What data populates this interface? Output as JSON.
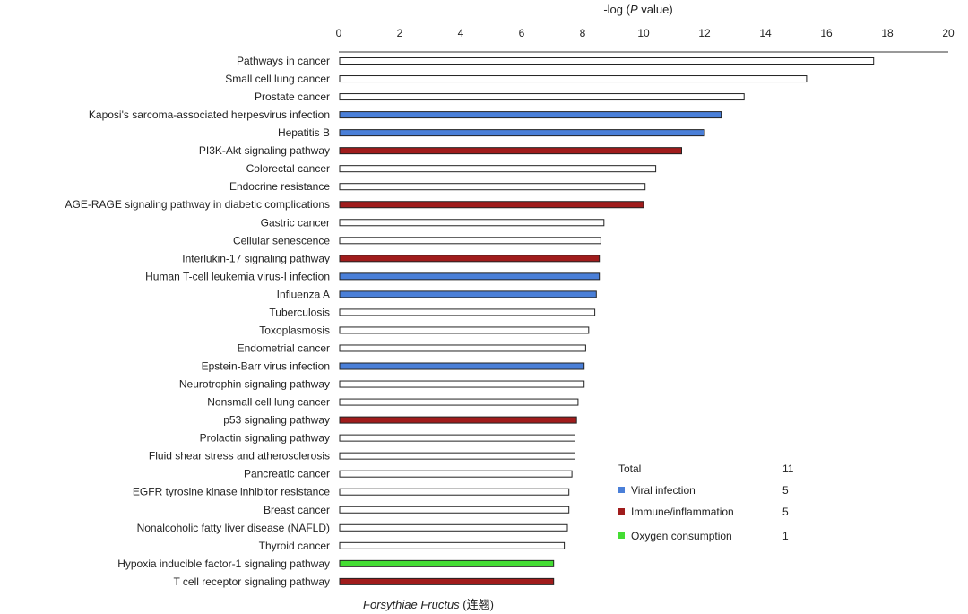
{
  "chart_data": {
    "type": "bar",
    "orientation": "horizontal",
    "xlabel_prefix": "-log (",
    "xlabel_italic": "P",
    "xlabel_suffix": " value)",
    "xlim": [
      0,
      20
    ],
    "xticks": [
      "0",
      "2",
      "4",
      "6",
      "8",
      "10",
      "12",
      "14",
      "16",
      "18",
      "20"
    ],
    "categories": [
      "Pathways in cancer",
      "Small cell lung cancer",
      "Prostate cancer",
      "Kaposi's sarcoma-associated herpesvirus infection",
      "Hepatitis B",
      "PI3K-Akt signaling pathway",
      "Colorectal cancer",
      "Endocrine resistance",
      "AGE-RAGE signaling pathway in diabetic complications",
      "Gastric cancer",
      "Cellular senescence",
      "Interlukin-17 signaling pathway",
      "Human T-cell leukemia virus-I infection",
      "Influenza A",
      "Tuberculosis",
      "Toxoplasmosis",
      "Endometrial cancer",
      "Epstein-Barr virus infection",
      "Neurotrophin signaling pathway",
      "Nonsmall cell lung cancer",
      "p53 signaling pathway",
      "Prolactin signaling pathway",
      "Fluid shear stress and atherosclerosis",
      "Pancreatic cancer",
      "EGFR tyrosine kinase inhibitor resistance",
      "Breast cancer",
      "Nonalcoholic fatty liver disease (NAFLD)",
      "Thyroid cancer",
      "Hypoxia inducible factor-1 signaling pathway",
      "T cell receptor signaling pathway"
    ],
    "values": [
      17.55,
      15.35,
      13.3,
      12.55,
      12.0,
      11.25,
      10.4,
      10.05,
      10.0,
      8.7,
      8.6,
      8.55,
      8.55,
      8.45,
      8.4,
      8.2,
      8.1,
      8.05,
      8.05,
      7.85,
      7.8,
      7.75,
      7.75,
      7.65,
      7.55,
      7.55,
      7.5,
      7.4,
      7.05,
      7.05
    ],
    "groups": [
      "none",
      "none",
      "none",
      "viral",
      "viral",
      "immune",
      "none",
      "none",
      "immune",
      "none",
      "none",
      "immune",
      "viral",
      "viral",
      "none",
      "none",
      "none",
      "viral",
      "none",
      "none",
      "immune",
      "none",
      "none",
      "none",
      "none",
      "none",
      "none",
      "none",
      "oxygen",
      "immune"
    ],
    "colors": {
      "none": "#ffffff",
      "viral": "#4a7fd8",
      "immune": "#a01c1c",
      "oxygen": "#44dd33",
      "bar_stroke": "#222222"
    },
    "legend": {
      "placement": "bottom-right",
      "total_label": "Total",
      "total_count": "11",
      "items": [
        {
          "label": "Viral infection",
          "count": "5",
          "group": "viral"
        },
        {
          "label": "Immune/inflammation",
          "count": "5",
          "group": "immune"
        },
        {
          "label": "Oxygen consumption",
          "count": "1",
          "group": "oxygen"
        }
      ]
    },
    "caption_italic": "Forsythiae Fructus",
    "caption_suffix": " (连翘)"
  }
}
